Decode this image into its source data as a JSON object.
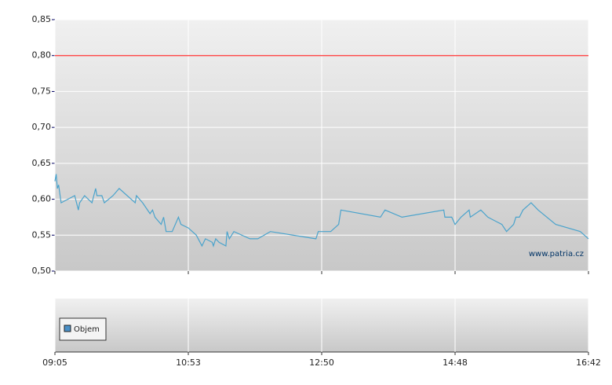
{
  "chart_data": [
    {
      "type": "line",
      "x": [
        "09:05",
        "09:06",
        "09:07",
        "09:08",
        "09:10",
        "09:21",
        "09:24",
        "09:25",
        "09:29",
        "09:35",
        "09:38",
        "09:39",
        "09:43",
        "09:45",
        "09:52",
        "09:57",
        "10:10",
        "10:11",
        "10:16",
        "10:22",
        "10:24",
        "10:26",
        "10:31",
        "10:33",
        "10:35",
        "10:40",
        "10:45",
        "10:47",
        "10:53",
        "11:00",
        "11:05",
        "11:08",
        "11:14",
        "11:15",
        "11:17",
        "11:20",
        "11:26",
        "11:27",
        "11:29",
        "11:33",
        "11:47",
        "11:54",
        "12:05",
        "12:45",
        "12:47",
        "12:58",
        "13:05",
        "13:07",
        "13:42",
        "13:46",
        "14:01",
        "14:38",
        "14:39",
        "14:45",
        "14:48",
        "14:53",
        "15:00",
        "15:01",
        "15:10",
        "15:16",
        "15:28",
        "15:32",
        "15:38",
        "15:40",
        "15:43",
        "15:46",
        "15:53",
        "15:59",
        "16:14",
        "16:35",
        "16:42"
      ],
      "values": [
        0.625,
        0.635,
        0.615,
        0.62,
        0.595,
        0.605,
        0.585,
        0.595,
        0.605,
        0.595,
        0.615,
        0.605,
        0.605,
        0.595,
        0.605,
        0.615,
        0.595,
        0.605,
        0.595,
        0.58,
        0.585,
        0.575,
        0.565,
        0.575,
        0.555,
        0.555,
        0.575,
        0.565,
        0.56,
        0.55,
        0.535,
        0.545,
        0.54,
        0.535,
        0.545,
        0.54,
        0.535,
        0.555,
        0.545,
        0.555,
        0.545,
        0.545,
        0.555,
        0.545,
        0.555,
        0.555,
        0.565,
        0.585,
        0.575,
        0.585,
        0.575,
        0.585,
        0.575,
        0.575,
        0.565,
        0.575,
        0.585,
        0.575,
        0.585,
        0.575,
        0.565,
        0.555,
        0.565,
        0.575,
        0.575,
        0.585,
        0.595,
        0.585,
        0.565,
        0.555,
        0.545
      ],
      "color": "#4aa3cc",
      "xlim": [
        "09:05",
        "16:42"
      ],
      "xticks": [
        "09:05",
        "10:53",
        "12:50",
        "14:48",
        "16:42"
      ],
      "ylim": [
        0.5,
        0.85
      ],
      "yticks": [
        {
          "value": 0.5,
          "label": "0,50"
        },
        {
          "value": 0.55,
          "label": "0,55"
        },
        {
          "value": 0.6,
          "label": "0,60"
        },
        {
          "value": 0.65,
          "label": "0,65"
        },
        {
          "value": 0.7,
          "label": "0,70"
        },
        {
          "value": 0.75,
          "label": "0,75"
        },
        {
          "value": 0.8,
          "label": "0,80"
        },
        {
          "value": 0.85,
          "label": "0,85"
        }
      ],
      "reference_line": {
        "value": 0.8,
        "color": "#ff3333"
      },
      "annotation": "www.patria.cz",
      "grid": true
    },
    {
      "type": "bar",
      "series": [
        {
          "name": "Objem",
          "color": "#4a90c8",
          "values": []
        }
      ]
    }
  ]
}
